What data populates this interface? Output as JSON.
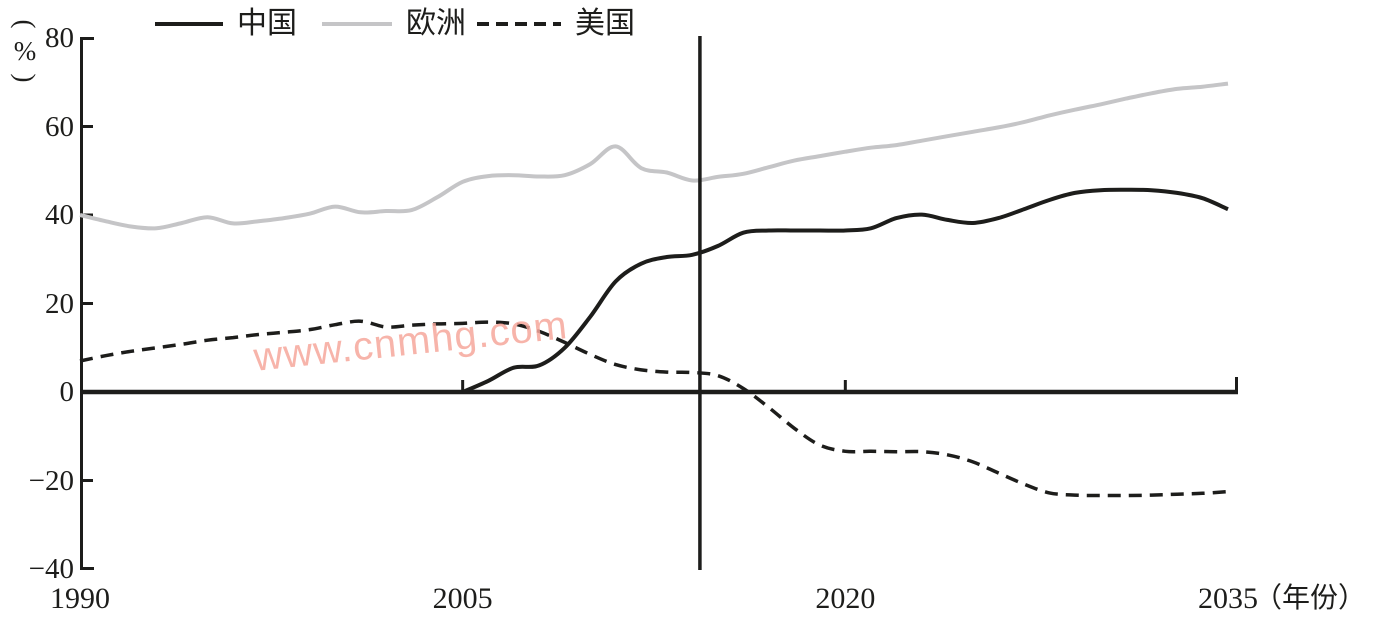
{
  "watermark": {
    "text": "www.cnmhg.com",
    "color": "#f6a79c"
  },
  "chart_data": {
    "type": "line",
    "title": "",
    "ylabel": {
      "open": "(",
      "symbol": "%",
      "close": ")"
    },
    "xlabel_suffix": "（年份）",
    "xlim": [
      1990,
      2035
    ],
    "ylim": [
      -40,
      80
    ],
    "grid": false,
    "legend_position": "top",
    "divider_year": 2014.3,
    "axis_color": "#1d1d1b",
    "y_ticks": [
      {
        "value": 80,
        "label": "80"
      },
      {
        "value": 60,
        "label": "60"
      },
      {
        "value": 40,
        "label": "40"
      },
      {
        "value": 20,
        "label": "20"
      },
      {
        "value": 0,
        "label": "0"
      },
      {
        "value": -20,
        "label": "−20"
      },
      {
        "value": -40,
        "label": "−40"
      }
    ],
    "x_ticks": [
      {
        "value": 1990,
        "label": "1990",
        "tick_mark": false
      },
      {
        "value": 2005,
        "label": "2005",
        "tick_mark": true
      },
      {
        "value": 2020,
        "label": "2020",
        "tick_mark": true
      },
      {
        "value": 2035,
        "label": "2035",
        "tick_mark": false
      }
    ],
    "series": [
      {
        "name": "中国",
        "line_style": "solid",
        "color": "#1d1d1b",
        "x_start": 2005,
        "x_step": 1,
        "values": [
          0,
          2.5,
          5.5,
          6,
          10,
          17,
          25,
          29,
          30.5,
          31,
          33,
          36,
          36.5,
          36.5,
          36.5,
          36.5,
          37,
          39.3,
          40.1,
          38.9,
          38.2,
          39.3,
          41.3,
          43.4,
          45,
          45.6,
          45.7,
          45.6,
          45,
          43.8,
          41.3
        ]
      },
      {
        "name": "欧洲",
        "line_style": "solid",
        "color": "#c5c5c7",
        "x_start": 1990,
        "x_step": 1,
        "values": [
          40,
          38.6,
          37.4,
          37,
          38.2,
          39.5,
          38.1,
          38.6,
          39.3,
          40.3,
          41.9,
          40.6,
          40.9,
          41.1,
          44,
          47.5,
          48.8,
          49,
          48.7,
          49,
          51.5,
          55.5,
          50.6,
          49.6,
          47.8,
          48.6,
          49.3,
          50.8,
          52.3,
          53.3,
          54.3,
          55.2,
          55.8,
          56.8,
          57.8,
          58.8,
          59.8,
          61,
          62.5,
          63.8,
          65,
          66.3,
          67.5,
          68.5,
          69,
          69.7
        ]
      },
      {
        "name": "美国",
        "line_style": "dashed",
        "color": "#1d1d1b",
        "x_start": 1990,
        "x_step": 1,
        "values": [
          7,
          8.2,
          9.2,
          10,
          10.8,
          11.7,
          12.3,
          13,
          13.5,
          14.1,
          15.2,
          16,
          14.7,
          15.1,
          15.4,
          15.5,
          15.8,
          15.4,
          13.7,
          11.2,
          8.5,
          6.2,
          5,
          4.5,
          4.4,
          3.7,
          0.8,
          -3.5,
          -8.2,
          -12,
          -13.4,
          -13.4,
          -13.5,
          -13.5,
          -14.2,
          -15.8,
          -18.3,
          -20.8,
          -22.8,
          -23.3,
          -23.4,
          -23.4,
          -23.3,
          -23.1,
          -22.9,
          -22.5
        ]
      }
    ]
  }
}
